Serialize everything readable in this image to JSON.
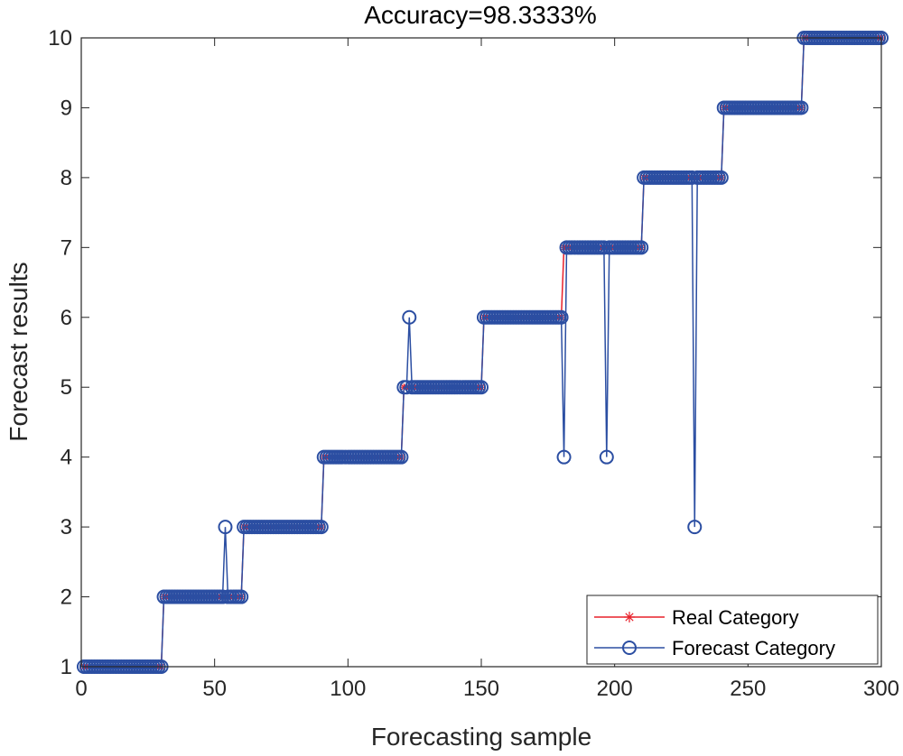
{
  "chart_data": {
    "type": "line",
    "title": "Accuracy=98.3333%",
    "xlabel": "Forecasting sample",
    "ylabel": "Forecast results",
    "xlim": [
      0,
      300
    ],
    "ylim": [
      1,
      10
    ],
    "xticks": [
      0,
      50,
      100,
      150,
      200,
      250,
      300
    ],
    "yticks": [
      1,
      2,
      3,
      4,
      5,
      6,
      7,
      8,
      9,
      10
    ],
    "grid": false,
    "legend_position": "bottom-right",
    "n_samples": 300,
    "samples_per_class": 30,
    "classes": [
      1,
      2,
      3,
      4,
      5,
      6,
      7,
      8,
      9,
      10
    ],
    "series": [
      {
        "name": "Real Category",
        "color": "#e8202a",
        "marker": "asterisk",
        "rule": "each class spans 30 consecutive samples: samples 1-30 = 1, 31-60 = 2, ..., 271-300 = 10"
      },
      {
        "name": "Forecast Category",
        "color": "#2b4ea2",
        "marker": "circle",
        "rule": "equal to Real Category except at the misclassified samples"
      }
    ],
    "misclassified": [
      {
        "sample": 54,
        "real": 2,
        "forecast": 3
      },
      {
        "sample": 123,
        "real": 5,
        "forecast": 6
      },
      {
        "sample": 181,
        "real": 7,
        "forecast": 4
      },
      {
        "sample": 197,
        "real": 7,
        "forecast": 4
      },
      {
        "sample": 230,
        "real": 8,
        "forecast": 3
      }
    ]
  }
}
